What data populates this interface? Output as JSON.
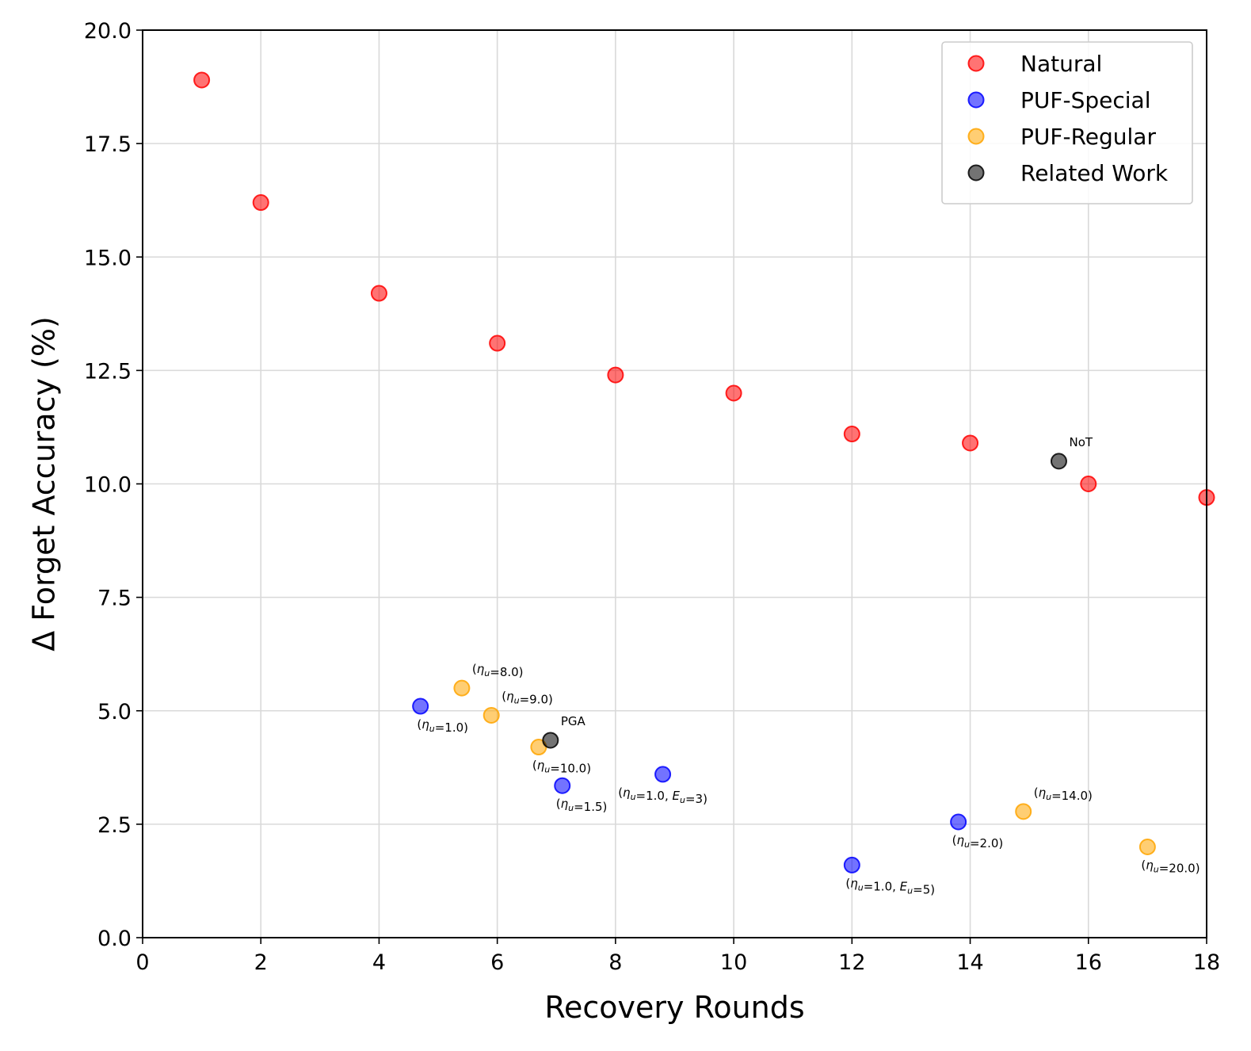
{
  "chart_data": {
    "type": "scatter",
    "title": "",
    "xlabel": "Recovery Rounds",
    "ylabel": "Δ Forget Accuracy (%)",
    "xlim": [
      0,
      18
    ],
    "ylim": [
      0,
      20
    ],
    "xticks": [
      "0",
      "2",
      "4",
      "6",
      "8",
      "10",
      "12",
      "14",
      "16",
      "18"
    ],
    "yticks": [
      "0.0",
      "2.5",
      "5.0",
      "7.5",
      "10.0",
      "12.5",
      "15.0",
      "17.5",
      "20.0"
    ],
    "grid": true,
    "legend_position": "top-right",
    "series": [
      {
        "name": "Natural",
        "color": "#ff0000",
        "points": [
          {
            "x": 1,
            "y": 18.9
          },
          {
            "x": 2,
            "y": 16.2
          },
          {
            "x": 4,
            "y": 14.2
          },
          {
            "x": 6,
            "y": 13.1
          },
          {
            "x": 8,
            "y": 12.4
          },
          {
            "x": 10,
            "y": 12.0
          },
          {
            "x": 12,
            "y": 11.1
          },
          {
            "x": 14,
            "y": 10.9
          },
          {
            "x": 16,
            "y": 10.0
          },
          {
            "x": 18,
            "y": 9.7
          }
        ]
      },
      {
        "name": "PUF-Special",
        "color": "#0000ff",
        "points": [
          {
            "x": 4.7,
            "y": 5.1,
            "label": "(ηu=1.0)",
            "label_pos": "below-left"
          },
          {
            "x": 7.1,
            "y": 3.35,
            "label": "(ηu=1.5)",
            "label_pos": "below-right"
          },
          {
            "x": 8.8,
            "y": 3.6,
            "label": "(ηu=1.0, Eu=3)",
            "label_pos": "below"
          },
          {
            "x": 12.0,
            "y": 1.6,
            "label": "(ηu=1.0, Eu=5)",
            "label_pos": "below-right"
          },
          {
            "x": 13.8,
            "y": 2.55,
            "label": "(ηu=2.0)",
            "label_pos": "below-right",
            "label_color": "#ff0000"
          }
        ]
      },
      {
        "name": "PUF-Regular",
        "color": "#ffa500",
        "points": [
          {
            "x": 5.4,
            "y": 5.5,
            "label": "(ηu=8.0)",
            "label_pos": "above-right"
          },
          {
            "x": 5.9,
            "y": 4.9,
            "label": "(ηu=9.0)",
            "label_pos": "above-right"
          },
          {
            "x": 6.7,
            "y": 4.2,
            "label": "(ηu=10.0)",
            "label_pos": "below-right"
          },
          {
            "x": 14.9,
            "y": 2.78,
            "label": "(ηu=14.0)",
            "label_pos": "above-right"
          },
          {
            "x": 17.0,
            "y": 2.0,
            "label": "(ηu=20.0)",
            "label_pos": "below-right",
            "label_color": "#ff0000"
          }
        ]
      },
      {
        "name": "Related Work",
        "color": "#000000",
        "points": [
          {
            "x": 6.9,
            "y": 4.35,
            "label": "PGA",
            "label_pos": "above-right"
          },
          {
            "x": 15.5,
            "y": 10.5,
            "label": "NoT",
            "label_pos": "above-right"
          }
        ]
      }
    ]
  }
}
